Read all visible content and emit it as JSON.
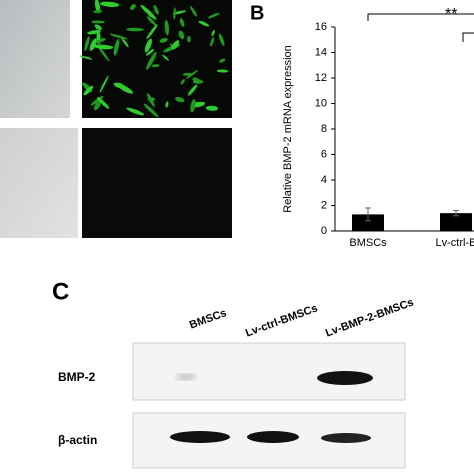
{
  "panel_b": {
    "label": "B"
  },
  "chart_data": {
    "type": "bar",
    "ylabel": "Relative BMP-2  mRNA expression",
    "categories": [
      "BMSCs",
      "Lv-ctrl-B"
    ],
    "values": [
      1.3,
      1.4
    ],
    "errors": [
      0.5,
      0.2
    ],
    "color": "#000000",
    "ylim": [
      0,
      16
    ],
    "yticks": [
      0,
      2,
      4,
      6,
      8,
      10,
      12,
      14,
      16
    ],
    "significance": "**"
  },
  "panel_c": {
    "label": "C",
    "lanes": [
      "BMSCs",
      "Lv-ctrl-BMSCs",
      "Lv-BMP-2-BMSCs"
    ],
    "rows": [
      "BMP-2",
      "β-actin"
    ]
  }
}
